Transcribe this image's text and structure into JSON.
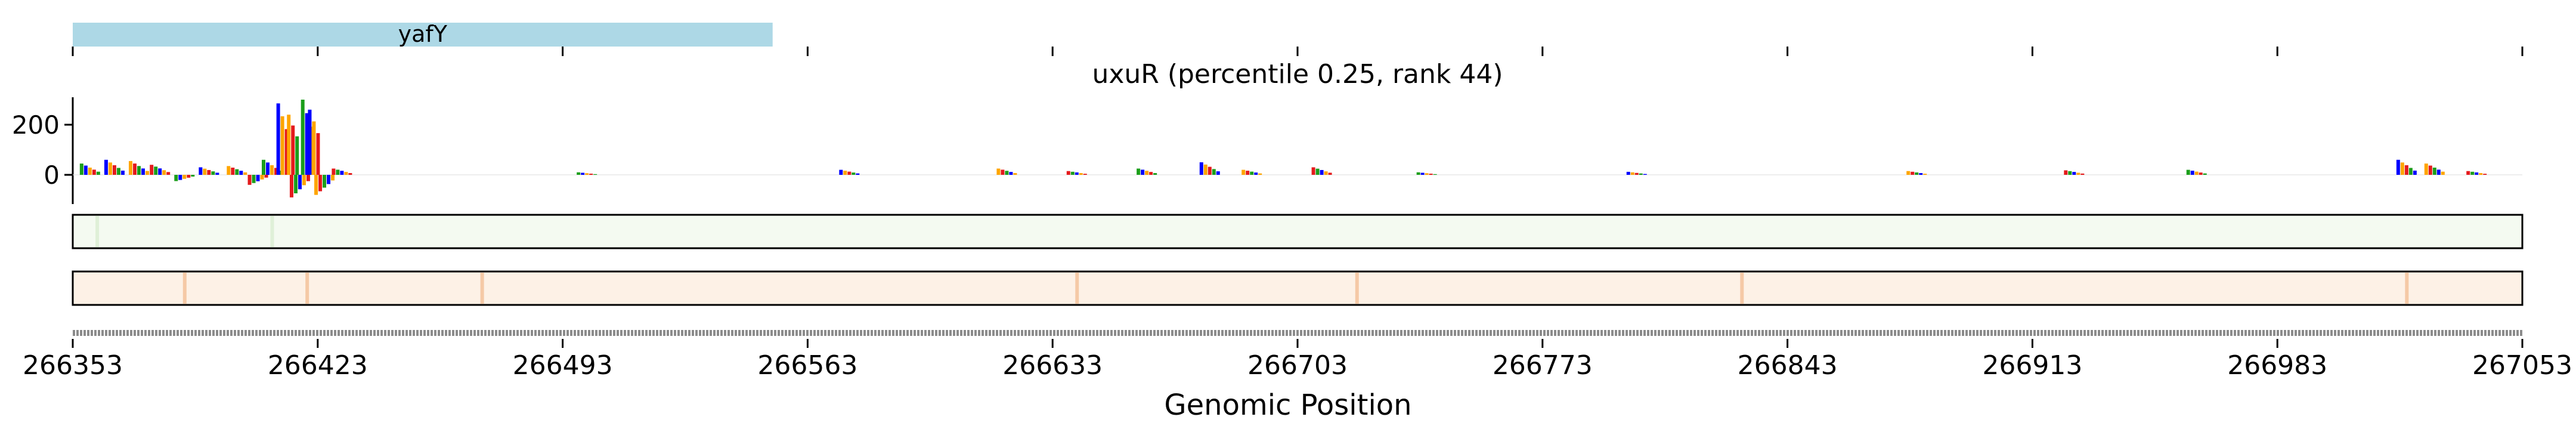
{
  "chart_data": {
    "type": "line",
    "title": "uxuR (percentile 0.25, rank 44)",
    "xlabel": "Genomic Position",
    "ylabel": "",
    "xlim": [
      266353,
      267053
    ],
    "ylim": [
      -100,
      300
    ],
    "x_ticks": [
      266353,
      266423,
      266493,
      266563,
      266633,
      266703,
      266773,
      266843,
      266913,
      266983,
      267053
    ],
    "y_ticks": [
      0,
      200
    ],
    "gene_annotation": {
      "name": "yafY",
      "start": 266353,
      "end": 266553,
      "color": "#add8e6"
    },
    "base_colors": {
      "A": "#1b9e1b",
      "C": "#0000ff",
      "G": "#ffa500",
      "T": "#e41a1c"
    },
    "series": [
      {
        "values": [
          {
            "x": 266358,
            "y": 45
          },
          {
            "x": 266365,
            "y": 60
          },
          {
            "x": 266372,
            "y": 55
          },
          {
            "x": 266378,
            "y": 40
          },
          {
            "x": 266385,
            "y": -25
          },
          {
            "x": 266392,
            "y": 30
          },
          {
            "x": 266400,
            "y": 35
          },
          {
            "x": 266406,
            "y": -40
          },
          {
            "x": 266410,
            "y": 60
          },
          {
            "x": 266413,
            "y": 285
          },
          {
            "x": 266416,
            "y": 240
          },
          {
            "x": 266418,
            "y": -90
          },
          {
            "x": 266420,
            "y": 300
          },
          {
            "x": 266422,
            "y": 260
          },
          {
            "x": 266425,
            "y": -80
          },
          {
            "x": 266430,
            "y": 25
          },
          {
            "x": 266500,
            "y": 10
          },
          {
            "x": 266575,
            "y": 20
          },
          {
            "x": 266620,
            "y": 25
          },
          {
            "x": 266640,
            "y": 15
          },
          {
            "x": 266660,
            "y": 25
          },
          {
            "x": 266678,
            "y": 50
          },
          {
            "x": 266690,
            "y": 20
          },
          {
            "x": 266710,
            "y": 30
          },
          {
            "x": 266740,
            "y": 10
          },
          {
            "x": 266800,
            "y": 12
          },
          {
            "x": 266880,
            "y": 15
          },
          {
            "x": 266925,
            "y": 18
          },
          {
            "x": 266960,
            "y": 20
          },
          {
            "x": 267020,
            "y": 60
          },
          {
            "x": 267028,
            "y": 45
          },
          {
            "x": 267040,
            "y": 15
          }
        ]
      }
    ],
    "heatmap_tracks": [
      {
        "color": "#dff0d8",
        "background": "#f4faf1",
        "hotspots": [
          266360,
          266410
        ]
      },
      {
        "color": "#f5c9a6",
        "background": "#fdf1e6",
        "hotspots": [
          266385,
          266420,
          266470,
          266640,
          266720,
          266830,
          267020
        ]
      }
    ]
  }
}
